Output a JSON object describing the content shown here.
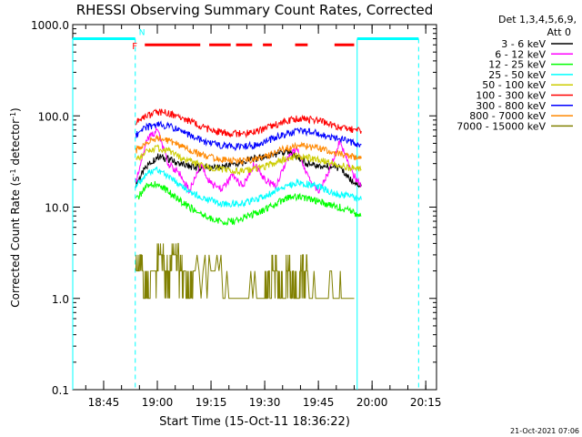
{
  "chart_data": {
    "type": "line",
    "title": "RHESSI Observing Summary Count Rates, Corrected",
    "xlabel": "Start Time (15-Oct-11 18:36:22)",
    "ylabel_main": "Corrected Count Rate (s",
    "ylabel_sup": "-1",
    "ylabel_mid": " detector",
    "ylabel_end": ")",
    "y_scale": "log",
    "ylim": [
      0.1,
      1000
    ],
    "xlim": [
      "18:36:22",
      "20:18:00"
    ],
    "x_ticks": [
      "18:45",
      "19:00",
      "19:15",
      "19:30",
      "19:45",
      "20:00",
      "20:15"
    ],
    "y_ticks": [
      "1000.0",
      "100.0",
      "10.0",
      "1.0",
      "0.1"
    ],
    "legend_placement": "right, outside plot",
    "legend_header": [
      "Det 1,3,4,5,6,9,",
      "Att 0"
    ],
    "timestamp": "21-Oct-2021 07:06",
    "markers": {
      "night_label": "N",
      "flare_label": "F",
      "night_color": "#00ffff",
      "flare_color": "#ff0000",
      "night_intervals": [
        [
          "18:36:22",
          "18:53:50"
        ],
        [
          "19:55:50",
          "20:13:00"
        ]
      ],
      "flare_intervals": [
        [
          "18:56:30",
          "19:12:00"
        ],
        [
          "19:14:30",
          "19:20:30"
        ],
        [
          "19:22:00",
          "19:26:30"
        ],
        [
          "19:29:30",
          "19:32:00"
        ],
        [
          "19:38:30",
          "19:42:00"
        ],
        [
          "19:49:30",
          "19:55:00"
        ]
      ]
    },
    "series": [
      {
        "name": "3 - 6 keV",
        "color": "#000000",
        "x": [
          "18:54",
          "18:57",
          "19:00",
          "19:03",
          "19:06",
          "19:09",
          "19:12",
          "19:15",
          "19:18",
          "19:21",
          "19:24",
          "19:27",
          "19:30",
          "19:33",
          "19:36",
          "19:39",
          "19:42",
          "19:45",
          "19:48",
          "19:51",
          "19:54",
          "19:57"
        ],
        "y": [
          18,
          28,
          36,
          34,
          30,
          28,
          27,
          27,
          28,
          29,
          31,
          34,
          35,
          38,
          40,
          36,
          30,
          28,
          28,
          27,
          20,
          17
        ]
      },
      {
        "name": "6 - 12 keV",
        "color": "#ff00ff",
        "x": [
          "18:54",
          "18:57",
          "19:00",
          "19:03",
          "19:06",
          "19:09",
          "19:12",
          "19:15",
          "19:18",
          "19:21",
          "19:24",
          "19:27",
          "19:30",
          "19:33",
          "19:36",
          "19:39",
          "19:42",
          "19:45",
          "19:48",
          "19:51",
          "19:54",
          "19:57"
        ],
        "y": [
          19,
          55,
          70,
          30,
          24,
          15,
          30,
          18,
          16,
          22,
          17,
          30,
          20,
          17,
          32,
          45,
          22,
          15,
          25,
          55,
          25,
          17
        ]
      },
      {
        "name": "12 - 25 keV",
        "color": "#00ff00",
        "x": [
          "18:54",
          "18:57",
          "19:00",
          "19:03",
          "19:06",
          "19:09",
          "19:12",
          "19:15",
          "19:18",
          "19:21",
          "19:24",
          "19:27",
          "19:30",
          "19:33",
          "19:36",
          "19:39",
          "19:42",
          "19:45",
          "19:48",
          "19:51",
          "19:54",
          "19:57"
        ],
        "y": [
          12,
          17,
          18,
          15,
          12,
          10,
          8.5,
          7.5,
          7,
          7,
          7.5,
          8.5,
          9.5,
          11,
          12.5,
          13,
          12.5,
          11.5,
          10.5,
          10,
          9,
          8
        ]
      },
      {
        "name": "25 - 50 keV",
        "color": "#00ffff",
        "x": [
          "18:54",
          "18:57",
          "19:00",
          "19:03",
          "19:06",
          "19:09",
          "19:12",
          "19:15",
          "19:18",
          "19:21",
          "19:24",
          "19:27",
          "19:30",
          "19:33",
          "19:36",
          "19:39",
          "19:42",
          "19:45",
          "19:48",
          "19:51",
          "19:54",
          "19:57"
        ],
        "y": [
          17,
          23,
          26,
          22,
          18,
          15,
          13,
          12,
          11,
          11,
          11,
          12,
          13,
          15,
          17,
          19,
          18,
          17,
          15,
          14,
          13,
          12
        ]
      },
      {
        "name": "50 - 100 keV",
        "color": "#cccc00",
        "x": [
          "18:54",
          "18:57",
          "19:00",
          "19:03",
          "19:06",
          "19:09",
          "19:12",
          "19:15",
          "19:18",
          "19:21",
          "19:24",
          "19:27",
          "19:30",
          "19:33",
          "19:36",
          "19:39",
          "19:42",
          "19:45",
          "19:48",
          "19:51",
          "19:54",
          "19:57"
        ],
        "y": [
          32,
          40,
          44,
          42,
          36,
          32,
          29,
          27,
          26,
          25,
          25,
          26,
          28,
          31,
          34,
          36,
          35,
          33,
          31,
          29,
          27,
          26
        ]
      },
      {
        "name": "100 - 300 keV",
        "color": "#ff0000",
        "x": [
          "18:54",
          "18:57",
          "19:00",
          "19:03",
          "19:06",
          "19:09",
          "19:12",
          "19:15",
          "19:18",
          "19:21",
          "19:24",
          "19:27",
          "19:30",
          "19:33",
          "19:36",
          "19:39",
          "19:42",
          "19:45",
          "19:48",
          "19:51",
          "19:54",
          "19:57"
        ],
        "y": [
          85,
          100,
          110,
          108,
          98,
          88,
          78,
          70,
          66,
          64,
          64,
          66,
          72,
          80,
          88,
          94,
          92,
          88,
          82,
          76,
          72,
          68
        ]
      },
      {
        "name": "300 - 800 keV",
        "color": "#0000ff",
        "x": [
          "18:54",
          "18:57",
          "19:00",
          "19:03",
          "19:06",
          "19:09",
          "19:12",
          "19:15",
          "19:18",
          "19:21",
          "19:24",
          "19:27",
          "19:30",
          "19:33",
          "19:36",
          "19:39",
          "19:42",
          "19:45",
          "19:48",
          "19:51",
          "19:54",
          "19:57"
        ],
        "y": [
          62,
          75,
          80,
          78,
          70,
          62,
          55,
          50,
          47,
          46,
          46,
          48,
          52,
          58,
          64,
          68,
          67,
          64,
          60,
          56,
          52,
          48
        ]
      },
      {
        "name": "800 - 7000 keV",
        "color": "#ff8800",
        "x": [
          "18:54",
          "18:57",
          "19:00",
          "19:03",
          "19:06",
          "19:09",
          "19:12",
          "19:15",
          "19:18",
          "19:21",
          "19:24",
          "19:27",
          "19:30",
          "19:33",
          "19:36",
          "19:39",
          "19:42",
          "19:45",
          "19:48",
          "19:51",
          "19:54",
          "19:57"
        ],
        "y": [
          42,
          52,
          56,
          54,
          48,
          43,
          38,
          35,
          33,
          32,
          32,
          33,
          36,
          40,
          44,
          47,
          46,
          44,
          41,
          38,
          36,
          34
        ]
      },
      {
        "name": "7000 - 15000 keV",
        "color": "#808000",
        "x": [
          "18:54",
          "18:56",
          "18:58",
          "19:00",
          "19:02",
          "19:04",
          "19:06",
          "19:08",
          "19:10",
          "19:20",
          "19:30",
          "19:32",
          "19:34",
          "19:36",
          "19:38",
          "19:40",
          "19:42",
          "19:50",
          "19:55"
        ],
        "y": [
          2,
          1,
          2,
          3,
          2,
          3,
          2,
          1,
          2,
          1,
          1,
          2,
          1,
          2,
          1,
          2,
          1,
          1,
          1
        ]
      }
    ]
  }
}
